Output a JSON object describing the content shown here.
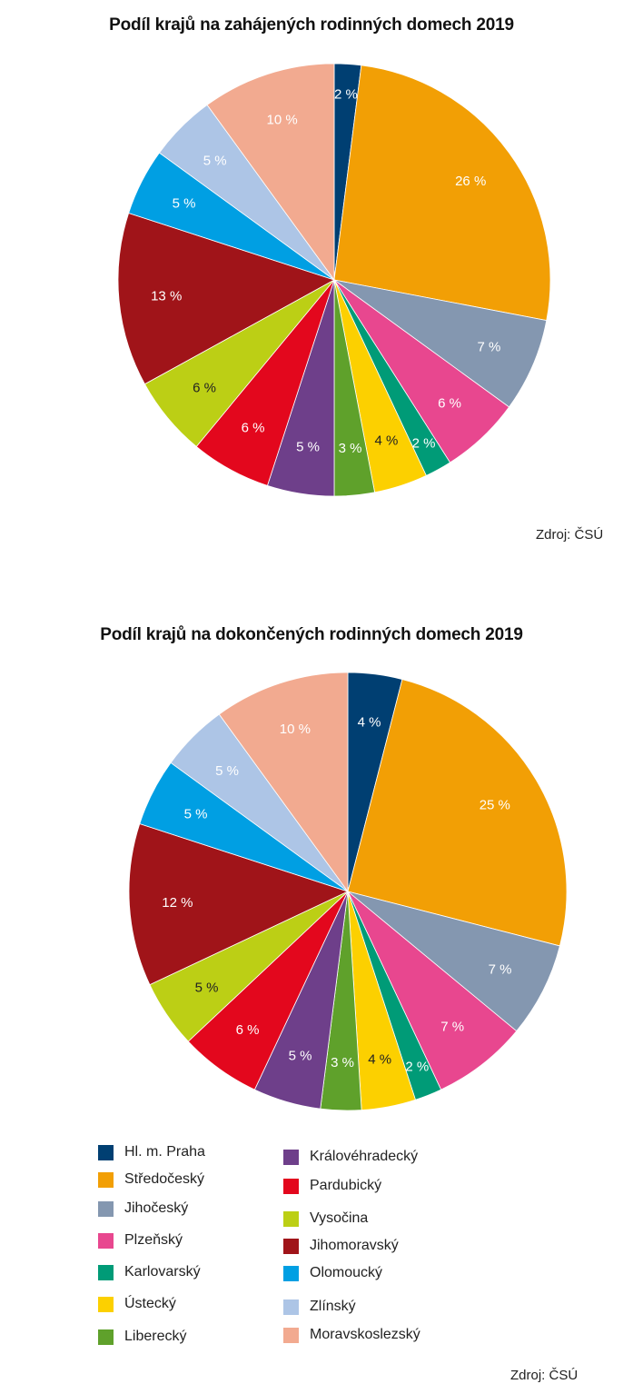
{
  "charts": [
    {
      "title": "Podíl krajů na zahájených rodinných domech 2019",
      "source": "Zdroj: ČSÚ"
    },
    {
      "title": "Podíl krajů na dokončených rodinných domech 2019",
      "source": "Zdroj: ČSÚ"
    }
  ],
  "chart_data": [
    {
      "type": "pie",
      "title": "Podíl krajů na zahájených rodinných domech 2019",
      "categories": [
        "Hl. m. Praha",
        "Středočeský",
        "Jihočeský",
        "Plzeňský",
        "Karlovarský",
        "Ústecký",
        "Liberecký",
        "Královéhradecký",
        "Pardubický",
        "Vysočina",
        "Jihomoravský",
        "Olomoucký",
        "Zlínský",
        "Moravskoslezský"
      ],
      "values": [
        2,
        26,
        7,
        6,
        2,
        4,
        3,
        5,
        6,
        6,
        13,
        5,
        5,
        10
      ],
      "labels": [
        "2 %",
        "26 %",
        "7 %",
        "6 %",
        "2 %",
        "4 %",
        "3 %",
        "5 %",
        "6 %",
        "6 %",
        "13 %",
        "5 %",
        "5 %",
        "10 %"
      ]
    },
    {
      "type": "pie",
      "title": "Podíl krajů na dokončených rodinných domech 2019",
      "categories": [
        "Hl. m. Praha",
        "Středočeský",
        "Jihočeský",
        "Plzeňský",
        "Karlovarský",
        "Ústecký",
        "Liberecký",
        "Královéhradecký",
        "Pardubický",
        "Vysočina",
        "Jihomoravský",
        "Olomoucký",
        "Zlínský",
        "Moravskoslezský"
      ],
      "values": [
        4,
        25,
        7,
        7,
        2,
        4,
        3,
        5,
        6,
        5,
        12,
        5,
        5,
        10
      ],
      "labels": [
        "4 %",
        "25 %",
        "7 %",
        "7 %",
        "2 %",
        "4 %",
        "3 %",
        "5 %",
        "6 %",
        "5 %",
        "12 %",
        "5 %",
        "5 %",
        "10 %"
      ]
    }
  ],
  "legend": [
    {
      "label": "Hl. m. Praha",
      "color": "#003f72"
    },
    {
      "label": "Středočeský",
      "color": "#f29f05"
    },
    {
      "label": "Jihočeský",
      "color": "#8497b0"
    },
    {
      "label": "Plzeňský",
      "color": "#e8478f"
    },
    {
      "label": "Karlovarský",
      "color": "#009b77"
    },
    {
      "label": "Ústecký",
      "color": "#fcd000"
    },
    {
      "label": "Liberecký",
      "color": "#5fa12b"
    },
    {
      "label": "Královéhradecký",
      "color": "#6e3f8a"
    },
    {
      "label": "Pardubický",
      "color": "#e3071d"
    },
    {
      "label": "Vysočina",
      "color": "#bccf15"
    },
    {
      "label": "Jihomoravský",
      "color": "#a01419"
    },
    {
      "label": "Olomoucký",
      "color": "#009fe3"
    },
    {
      "label": "Zlínský",
      "color": "#adc5e6"
    },
    {
      "label": "Moravskoslezský",
      "color": "#f2aa90"
    }
  ]
}
